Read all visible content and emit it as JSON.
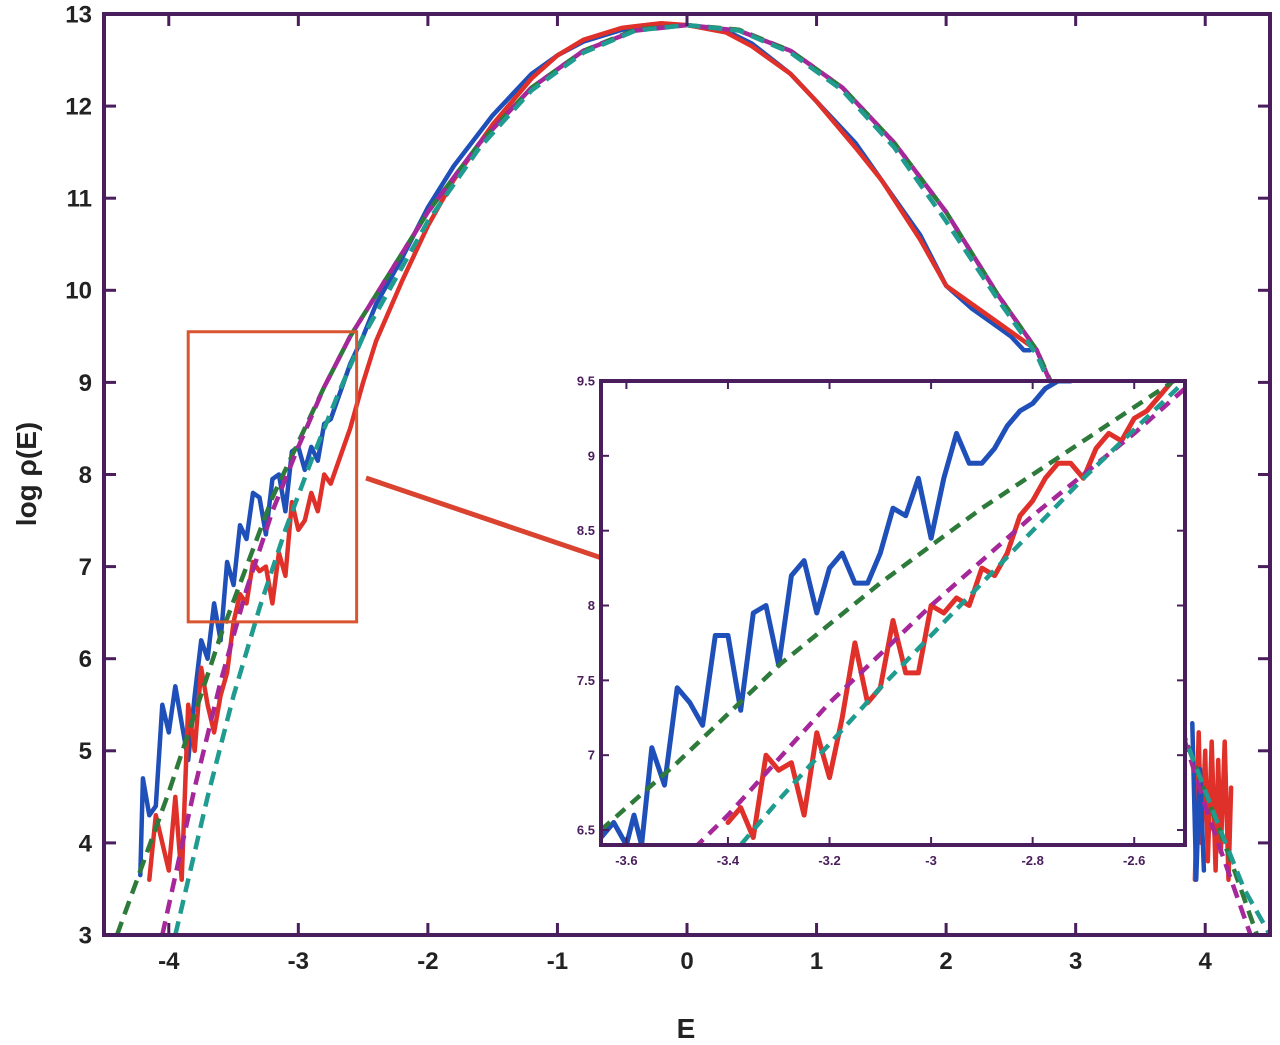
{
  "colors": {
    "frame": "#4a1d5c",
    "blue": "#1f4fb8",
    "red": "#e0302a",
    "green_dash": "#2d7a3a",
    "magenta_dash": "#a5279a",
    "teal_dash": "#1f9c8f",
    "zoom_box": "#d9552f",
    "arrow": "#d9432f"
  },
  "chart_data": [
    {
      "type": "line",
      "title": "",
      "xlabel": "E",
      "ylabel": "log ρ(E)",
      "xlim": [
        -4.5,
        4.5
      ],
      "ylim": [
        3,
        13
      ],
      "x_ticks": [
        -4,
        -3,
        -2,
        -1,
        0,
        1,
        2,
        3,
        4
      ],
      "x_tick_labels": [
        "-4",
        "-3",
        "-2",
        "-1",
        "0",
        "1",
        "2",
        "3",
        "4"
      ],
      "y_ticks": [
        3,
        4,
        5,
        6,
        7,
        8,
        9,
        10,
        11,
        12,
        13
      ],
      "y_tick_labels": [
        "3",
        "4",
        "5",
        "6",
        "7",
        "8",
        "9",
        "10",
        "11",
        "12",
        "13"
      ],
      "grid": false,
      "legend": "none",
      "series": [
        {
          "style": "solid",
          "color_key": "blue",
          "x": [
            -4.22,
            -4.2,
            -4.15,
            -4.1,
            -4.05,
            -4.0,
            -3.95,
            -3.9,
            -3.85,
            -3.8,
            -3.75,
            -3.7,
            -3.65,
            -3.6,
            -3.55,
            -3.5,
            -3.45,
            -3.4,
            -3.35,
            -3.3,
            -3.25,
            -3.2,
            -3.15,
            -3.1,
            -3.05,
            -3.0,
            -2.95,
            -2.9,
            -2.85,
            -2.8,
            -2.75,
            -2.7,
            -2.6,
            -2.5,
            -2.4,
            -2.2,
            -2.0,
            -1.8,
            -1.5,
            -1.2,
            -1.0,
            -0.8,
            -0.5,
            -0.2,
            0.0,
            0.3,
            0.5,
            0.8,
            1.0,
            1.3,
            1.5,
            1.8,
            2.0,
            2.2,
            2.4,
            2.5,
            2.6,
            2.65
          ],
          "y": [
            3.65,
            4.7,
            4.3,
            4.4,
            5.5,
            5.2,
            5.7,
            5.3,
            4.9,
            5.6,
            6.2,
            6.0,
            6.6,
            6.2,
            7.05,
            6.8,
            7.45,
            7.3,
            7.8,
            7.75,
            7.35,
            7.95,
            8.0,
            7.6,
            8.25,
            8.3,
            8.05,
            8.3,
            8.15,
            8.55,
            8.6,
            8.8,
            9.2,
            9.5,
            9.85,
            10.35,
            10.9,
            11.35,
            11.9,
            12.35,
            12.55,
            12.7,
            12.83,
            12.87,
            12.88,
            12.82,
            12.68,
            12.35,
            12.05,
            11.6,
            11.2,
            10.6,
            10.05,
            9.8,
            9.6,
            9.5,
            9.35,
            9.35
          ]
        },
        {
          "style": "solid",
          "color_key": "red",
          "x": [
            -4.15,
            -4.1,
            -4.0,
            -3.95,
            -3.9,
            -3.85,
            -3.8,
            -3.75,
            -3.7,
            -3.65,
            -3.6,
            -3.55,
            -3.5,
            -3.45,
            -3.4,
            -3.35,
            -3.3,
            -3.25,
            -3.2,
            -3.15,
            -3.1,
            -3.05,
            -3.0,
            -2.95,
            -2.9,
            -2.85,
            -2.8,
            -2.75,
            -2.7,
            -2.6,
            -2.5,
            -2.4,
            -2.2,
            -2.0,
            -1.8,
            -1.5,
            -1.2,
            -1.0,
            -0.8,
            -0.5,
            -0.2,
            0.0,
            0.3,
            0.5,
            0.8,
            1.0,
            1.3,
            1.5,
            1.8,
            2.0,
            2.2,
            2.4,
            2.5,
            2.6,
            2.7
          ],
          "y": [
            3.6,
            4.3,
            3.7,
            4.5,
            3.6,
            5.5,
            5.0,
            5.9,
            5.5,
            5.2,
            5.6,
            5.85,
            6.4,
            6.7,
            6.6,
            7.05,
            6.95,
            7.0,
            6.6,
            7.15,
            6.9,
            7.7,
            7.4,
            7.5,
            7.8,
            7.6,
            8.0,
            7.9,
            8.1,
            8.5,
            9.0,
            9.45,
            10.1,
            10.7,
            11.2,
            11.8,
            12.3,
            12.55,
            12.72,
            12.85,
            12.9,
            12.88,
            12.8,
            12.65,
            12.35,
            12.05,
            11.55,
            11.2,
            10.55,
            10.05,
            9.85,
            9.65,
            9.55,
            9.45,
            9.35
          ]
        },
        {
          "style": "solid",
          "color_key": "red",
          "x": [
            3.92,
            3.95,
            3.97,
            4.0,
            4.02,
            4.05,
            4.08,
            4.1,
            4.12,
            4.15,
            4.18,
            4.2
          ],
          "y": [
            3.6,
            5.2,
            4.0,
            5.0,
            3.8,
            5.1,
            3.7,
            4.9,
            3.9,
            5.1,
            3.6,
            4.6
          ]
        },
        {
          "style": "solid",
          "color_key": "blue",
          "x": [
            3.9,
            3.93,
            3.96,
            3.99
          ],
          "y": [
            5.3,
            3.6,
            4.8,
            3.7
          ]
        },
        {
          "style": "dashed",
          "color_key": "green_dash",
          "x": [
            -4.4,
            -4.0,
            -3.6,
            -3.4,
            -3.2,
            -3.0,
            -2.8,
            -2.6,
            -2.4,
            -2.0,
            -1.6,
            -1.2,
            -0.8,
            -0.4,
            0.0,
            0.4,
            0.8,
            1.2,
            1.6,
            2.0,
            2.4,
            2.7,
            3.0,
            3.4,
            3.8,
            4.0,
            4.2,
            4.4
          ],
          "y": [
            3.0,
            4.55,
            6.25,
            7.0,
            7.75,
            8.35,
            8.95,
            9.5,
            9.95,
            10.85,
            11.6,
            12.2,
            12.6,
            12.83,
            12.88,
            12.83,
            12.6,
            12.2,
            11.6,
            10.85,
            9.95,
            9.35,
            8.4,
            7.0,
            5.3,
            4.55,
            3.8,
            3.0
          ]
        },
        {
          "style": "dashed",
          "color_key": "magenta_dash",
          "x": [
            -4.05,
            -3.8,
            -3.6,
            -3.4,
            -3.2,
            -3.0,
            -2.8,
            -2.6,
            -2.4,
            -2.0,
            -1.6,
            -1.2,
            -0.8,
            -0.4,
            0.0,
            0.4,
            0.8,
            1.2,
            1.6,
            2.0,
            2.4,
            2.7,
            3.0,
            3.4,
            3.8,
            4.0,
            4.2,
            4.35
          ],
          "y": [
            3.0,
            4.6,
            5.75,
            6.75,
            7.6,
            8.3,
            8.95,
            9.5,
            9.95,
            10.85,
            11.6,
            12.2,
            12.6,
            12.82,
            12.88,
            12.82,
            12.6,
            12.2,
            11.6,
            10.85,
            9.95,
            9.35,
            8.35,
            6.9,
            5.3,
            4.4,
            3.6,
            3.0
          ]
        },
        {
          "style": "dashed",
          "color_key": "teal_dash",
          "x": [
            -3.95,
            -3.7,
            -3.5,
            -3.3,
            -3.1,
            -2.9,
            -2.7,
            -2.5,
            -2.2,
            -2.0,
            -1.6,
            -1.2,
            -0.8,
            -0.4,
            0.0,
            0.4,
            0.8,
            1.2,
            1.6,
            2.0,
            2.4,
            2.7,
            3.0,
            3.4,
            3.8,
            4.1,
            4.3,
            4.5
          ],
          "y": [
            3.0,
            4.5,
            5.6,
            6.55,
            7.4,
            8.15,
            8.85,
            9.5,
            10.25,
            10.75,
            11.55,
            12.17,
            12.58,
            12.82,
            12.88,
            12.82,
            12.58,
            12.17,
            11.55,
            10.75,
            9.9,
            9.3,
            8.35,
            6.9,
            5.3,
            4.2,
            3.5,
            3.0
          ]
        }
      ],
      "zoom_box": {
        "x": [
          -3.85,
          -2.55
        ],
        "y": [
          6.4,
          9.55
        ]
      }
    },
    {
      "type": "line",
      "title": "",
      "xlabel": "",
      "ylabel": "",
      "xlim": [
        -3.65,
        -2.5
      ],
      "ylim": [
        6.4,
        9.5
      ],
      "x_ticks": [
        -3.6,
        -3.4,
        -3.2,
        -3.0,
        -2.8,
        -2.6
      ],
      "x_tick_labels": [
        "-3.6",
        "-3.4",
        "-3.2",
        "-3",
        "-2.8",
        "-2.6"
      ],
      "y_ticks": [
        6.5,
        7.0,
        7.5,
        8.0,
        8.5,
        9.0,
        9.5
      ],
      "y_tick_labels": [
        "6.5",
        "7",
        "7.5",
        "8",
        "8.5",
        "9",
        "9.5"
      ],
      "grid": false,
      "legend": "none",
      "series": [
        {
          "style": "solid",
          "color_key": "blue",
          "x": [
            -3.65,
            -3.625,
            -3.6,
            -3.585,
            -3.57,
            -3.55,
            -3.525,
            -3.5,
            -3.475,
            -3.45,
            -3.425,
            -3.4,
            -3.375,
            -3.35,
            -3.325,
            -3.3,
            -3.275,
            -3.25,
            -3.225,
            -3.2,
            -3.175,
            -3.15,
            -3.125,
            -3.1,
            -3.075,
            -3.05,
            -3.025,
            -3.0,
            -2.975,
            -2.95,
            -2.925,
            -2.9,
            -2.875,
            -2.85,
            -2.825,
            -2.8,
            -2.775,
            -2.75,
            -2.725,
            -2.7,
            -2.675
          ],
          "y": [
            6.45,
            6.55,
            6.4,
            6.6,
            6.4,
            7.05,
            6.8,
            7.45,
            7.35,
            7.2,
            7.8,
            7.8,
            7.3,
            7.95,
            8.0,
            7.6,
            8.2,
            8.3,
            7.95,
            8.25,
            8.35,
            8.15,
            8.15,
            8.35,
            8.65,
            8.6,
            8.85,
            8.45,
            8.85,
            9.15,
            8.95,
            8.95,
            9.05,
            9.2,
            9.3,
            9.35,
            9.45,
            9.5,
            9.5,
            9.55,
            9.6
          ]
        },
        {
          "style": "solid",
          "color_key": "red",
          "x": [
            -3.4,
            -3.375,
            -3.35,
            -3.325,
            -3.3,
            -3.275,
            -3.25,
            -3.225,
            -3.2,
            -3.175,
            -3.15,
            -3.125,
            -3.1,
            -3.075,
            -3.05,
            -3.025,
            -3.0,
            -2.975,
            -2.95,
            -2.925,
            -2.9,
            -2.875,
            -2.85,
            -2.825,
            -2.8,
            -2.775,
            -2.75,
            -2.725,
            -2.7,
            -2.675,
            -2.65,
            -2.625,
            -2.6,
            -2.575,
            -2.55,
            -2.525,
            -2.5
          ],
          "y": [
            6.55,
            6.65,
            6.45,
            7.0,
            6.9,
            6.95,
            6.6,
            7.15,
            6.85,
            7.25,
            7.75,
            7.35,
            7.45,
            7.9,
            7.55,
            7.55,
            8.0,
            7.95,
            8.05,
            8.0,
            8.25,
            8.2,
            8.35,
            8.6,
            8.7,
            8.85,
            8.95,
            8.95,
            8.85,
            9.05,
            9.15,
            9.1,
            9.25,
            9.3,
            9.4,
            9.5,
            9.55
          ]
        },
        {
          "style": "dashed",
          "color_key": "green_dash",
          "x": [
            -3.65,
            -3.5,
            -3.3,
            -3.1,
            -2.9,
            -2.7,
            -2.5
          ],
          "y": [
            6.5,
            6.95,
            7.6,
            8.15,
            8.65,
            9.1,
            9.55
          ]
        },
        {
          "style": "dashed",
          "color_key": "magenta_dash",
          "x": [
            -3.55,
            -3.4,
            -3.2,
            -3.0,
            -2.8,
            -2.6,
            -2.5
          ],
          "y": [
            6.1,
            6.6,
            7.35,
            8.0,
            8.6,
            9.15,
            9.45
          ]
        },
        {
          "style": "dashed",
          "color_key": "teal_dash",
          "x": [
            -3.45,
            -3.3,
            -3.1,
            -2.9,
            -2.7,
            -2.5
          ],
          "y": [
            6.1,
            6.7,
            7.45,
            8.15,
            8.85,
            9.5
          ]
        }
      ]
    }
  ]
}
